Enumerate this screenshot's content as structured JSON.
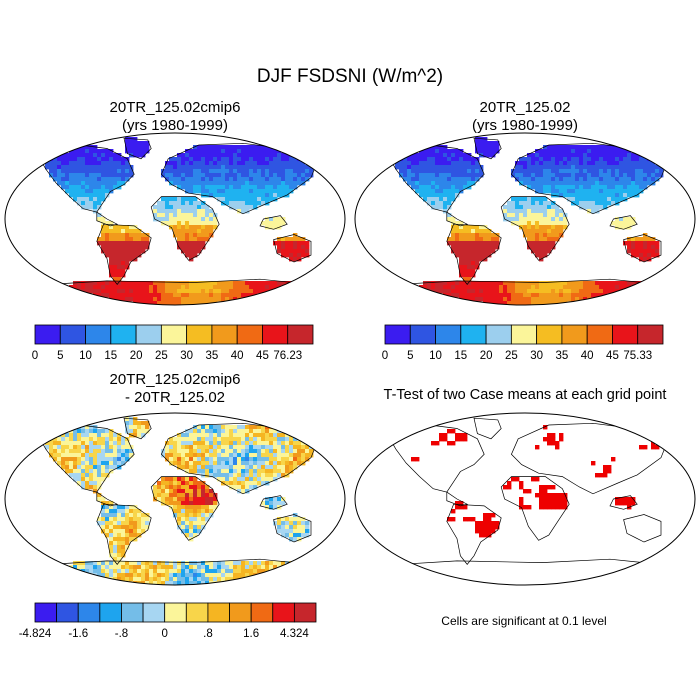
{
  "chart_data": {
    "type": "heatmap",
    "title": "DJF FSDSNI (W/m^2)",
    "panels": [
      {
        "kind": "field",
        "title_line1": "20TR_125.02cmip6",
        "title_line2": "(yrs 1980-1999)",
        "colorbar": {
          "labels": [
            "0",
            "5",
            "10",
            "15",
            "20",
            "25",
            "30",
            "35",
            "40",
            "45",
            "76.23"
          ],
          "colors": [
            "#3b1cf0",
            "#2f55e2",
            "#2d86ea",
            "#1fb2f0",
            "#9ccfee",
            "#fbf59a",
            "#f5bd22",
            "#f19a1c",
            "#f06a14",
            "#e8141a",
            "#c6262c"
          ]
        }
      },
      {
        "kind": "field",
        "title_line1": "20TR_125.02",
        "title_line2": "(yrs 1980-1999)",
        "colorbar": {
          "labels": [
            "0",
            "5",
            "10",
            "15",
            "20",
            "25",
            "30",
            "35",
            "40",
            "45",
            "75.33"
          ],
          "colors": [
            "#3b1cf0",
            "#2f55e2",
            "#2d86ea",
            "#1fb2f0",
            "#9ccfee",
            "#fbf59a",
            "#f5bd22",
            "#f19a1c",
            "#f06a14",
            "#e8141a",
            "#c6262c"
          ]
        }
      },
      {
        "kind": "difference",
        "title_line1": "20TR_125.02cmip6",
        "title_line2": "- 20TR_125.02",
        "colorbar": {
          "labels": [
            "-4.824",
            "-1.6",
            "-.8",
            "0",
            ".8",
            "1.6",
            "4.324"
          ],
          "label_positions": [
            0,
            2,
            4,
            6,
            8,
            10,
            12
          ],
          "colors": [
            "#3b1cf0",
            "#2f55e2",
            "#2d86ea",
            "#1ea4ee",
            "#74bde8",
            "#a7d6f2",
            "#fbf59a",
            "#f8d54a",
            "#f5b522",
            "#f19a1c",
            "#f06a14",
            "#e8141a",
            "#c6262c"
          ]
        }
      },
      {
        "kind": "ttest",
        "title_line1": "T-Test of two Case means at each grid point",
        "note": "Cells are significant at 0.1 level",
        "significant_color": "#ee0000"
      }
    ]
  }
}
